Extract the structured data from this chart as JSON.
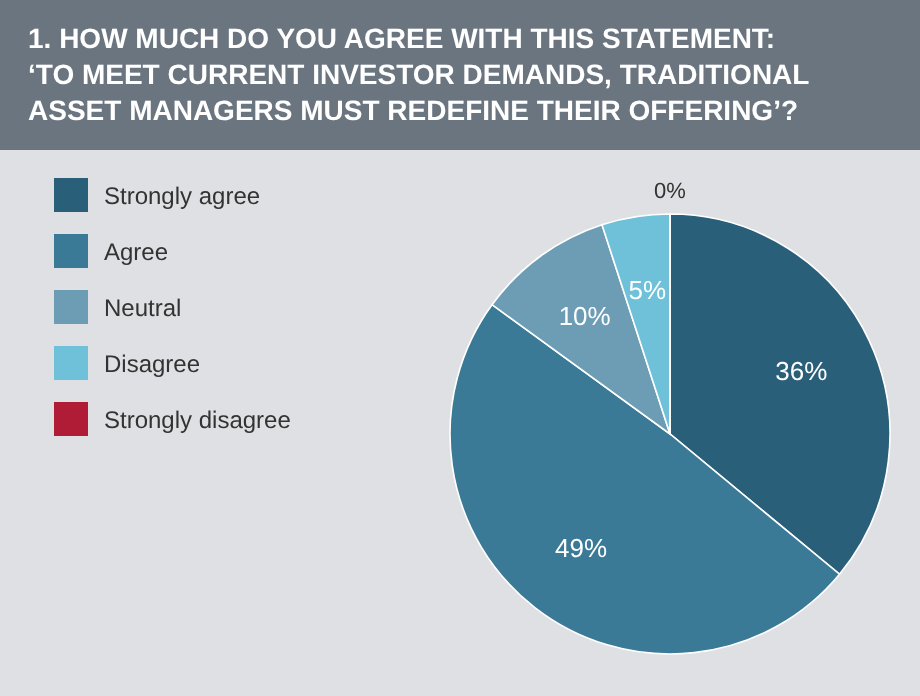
{
  "chart_data": {
    "type": "pie",
    "title": "1. HOW MUCH DO YOU AGREE WITH THIS STATEMENT: ‘TO MEET CURRENT INVESTOR DEMANDS, TRADITIONAL ASSET MANAGERS MUST REDEFINE THEIR OFFERING’?",
    "categories": [
      "Strongly agree",
      "Agree",
      "Neutral",
      "Disagree",
      "Strongly disagree"
    ],
    "values": [
      36,
      49,
      10,
      5,
      0
    ],
    "colors": [
      "#2a5f7a",
      "#3a7a96",
      "#6c9db4",
      "#6ec1d8",
      "#b01b35"
    ],
    "value_labels": [
      "36%",
      "49%",
      "10%",
      "5%",
      "0%"
    ],
    "legend": "left"
  }
}
